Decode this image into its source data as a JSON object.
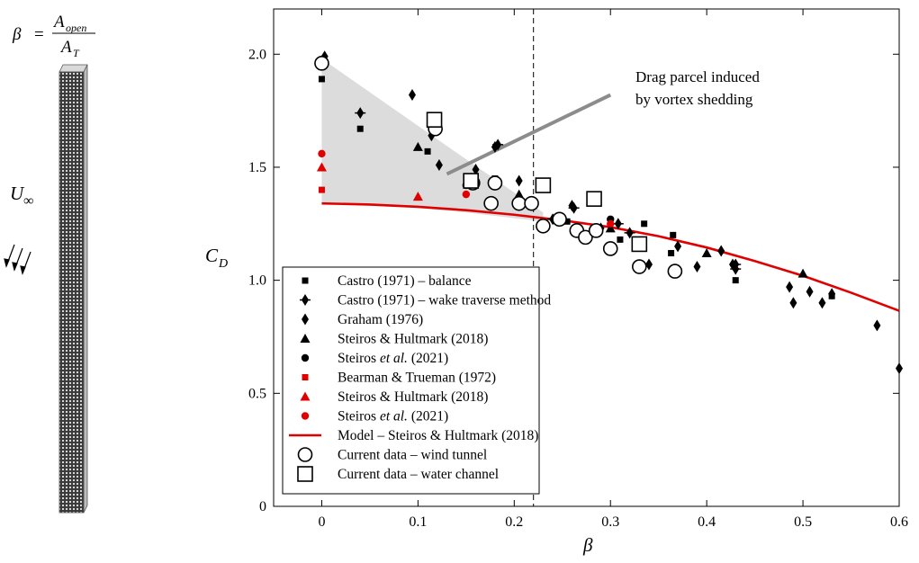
{
  "inset": {
    "beta_symbol": "β",
    "equals": "=",
    "numerator": "A",
    "numerator_sub": "open",
    "denominator": "A",
    "denominator_sub": "T",
    "flow_label": "U",
    "flow_label_sub": "∞"
  },
  "annotation": {
    "line1": "Drag parcel induced",
    "line2": "by vortex shedding"
  },
  "colors": {
    "black": "#000000",
    "red": "#e00000",
    "band": "#dcdcdc",
    "parcel_line": "#8c8c8c"
  },
  "chart_data": {
    "type": "scatter",
    "xlabel": "β",
    "ylabel": "C",
    "ylabel_sub": "D",
    "xlim": [
      -0.05,
      0.6
    ],
    "ylim": [
      0,
      2.2
    ],
    "xticks": [
      0,
      0.1,
      0.2,
      0.3,
      0.4,
      0.5,
      0.6
    ],
    "xtick_labels": [
      "0",
      "0.1",
      "0.2",
      "0.3",
      "0.4",
      "0.5",
      "0.6"
    ],
    "yticks": [
      0,
      0.5,
      1.0,
      1.5,
      2.0
    ],
    "ytick_labels": [
      "0",
      "0.5",
      "1.0",
      "1.5",
      "2.0"
    ],
    "grid": false,
    "legend_position": "bottom-left",
    "vertical_dashed_line_x": 0.22,
    "shaded_region": [
      [
        0,
        1.98
      ],
      [
        0.145,
        1.55
      ],
      [
        0.23,
        1.3
      ],
      [
        0.23,
        1.26
      ],
      [
        0.15,
        1.3
      ],
      [
        0.1,
        1.32
      ],
      [
        0,
        1.34
      ]
    ],
    "parcel_line": [
      [
        0.13,
        1.47
      ],
      [
        0.3,
        1.82
      ]
    ],
    "series": [
      {
        "name": "Castro (1971) – balance",
        "marker": "square",
        "size": "small",
        "color": "#000000",
        "points": [
          [
            0,
            1.89
          ],
          [
            0.04,
            1.67
          ],
          [
            0.11,
            1.57
          ],
          [
            0.18,
            1.45
          ],
          [
            0.255,
            1.26
          ],
          [
            0.285,
            1.21
          ],
          [
            0.31,
            1.18
          ],
          [
            0.335,
            1.25
          ],
          [
            0.363,
            1.12
          ],
          [
            0.365,
            1.2
          ],
          [
            0.43,
            1.0
          ],
          [
            0.53,
            0.93
          ]
        ]
      },
      {
        "name": "Castro (1971) – wake traverse method",
        "marker": "cross-diamond",
        "size": "normal",
        "color": "#000000",
        "points": [
          [
            0.0,
            1.97
          ],
          [
            0.04,
            1.74
          ],
          [
            0.117,
            1.69
          ],
          [
            0.183,
            1.6
          ],
          [
            0.155,
            1.45
          ],
          [
            0.24,
            1.27
          ],
          [
            0.262,
            1.32
          ],
          [
            0.308,
            1.25
          ],
          [
            0.32,
            1.21
          ],
          [
            0.43,
            1.07
          ],
          [
            0.43,
            1.05
          ]
        ]
      },
      {
        "name": "Graham (1976)",
        "marker": "diamond",
        "size": "normal",
        "color": "#000000",
        "points": [
          [
            0.003,
            1.99
          ],
          [
            0.094,
            1.82
          ],
          [
            0.114,
            1.64
          ],
          [
            0.122,
            1.51
          ],
          [
            0.18,
            1.59
          ],
          [
            0.16,
            1.49
          ],
          [
            0.205,
            1.44
          ],
          [
            0.26,
            1.33
          ],
          [
            0.29,
            1.23
          ],
          [
            0.37,
            1.15
          ],
          [
            0.39,
            1.06
          ],
          [
            0.415,
            1.13
          ],
          [
            0.427,
            1.07
          ],
          [
            0.486,
            0.97
          ],
          [
            0.49,
            0.9
          ],
          [
            0.507,
            0.95
          ],
          [
            0.52,
            0.9
          ],
          [
            0.53,
            0.94
          ],
          [
            0.577,
            0.8
          ],
          [
            0.6,
            0.61
          ],
          [
            0.34,
            1.07
          ]
        ]
      },
      {
        "name": "Steiros & Hultmark (2018)",
        "marker": "triangle",
        "size": "normal",
        "color": "#000000",
        "points": [
          [
            0.1,
            1.59
          ],
          [
            0.205,
            1.38
          ],
          [
            0.3,
            1.23
          ],
          [
            0.4,
            1.12
          ],
          [
            0.5,
            1.03
          ]
        ]
      },
      {
        "name": "Steiros et al. (2021)",
        "marker": "circle",
        "size": "small",
        "color": "#000000",
        "points": [
          [
            0.15,
            1.42
          ],
          [
            0.3,
            1.27
          ]
        ]
      },
      {
        "name": "Bearman & Trueman (1972)",
        "marker": "square",
        "size": "small",
        "color": "#e00000",
        "points": [
          [
            0,
            1.4
          ]
        ]
      },
      {
        "name": "Steiros & Hultmark (2018)",
        "marker": "triangle",
        "size": "normal",
        "color": "#e00000",
        "points": [
          [
            0,
            1.5
          ],
          [
            0.1,
            1.37
          ]
        ]
      },
      {
        "name": "Steiros et al. (2021)",
        "marker": "circle",
        "size": "small",
        "color": "#e00000",
        "points": [
          [
            0,
            1.56
          ],
          [
            0.15,
            1.38
          ],
          [
            0.3,
            1.25
          ]
        ]
      },
      {
        "name": "Model – Steiros & Hultmark (2018)",
        "marker": "line",
        "size": "normal",
        "color": "#e00000",
        "points": [
          [
            0,
            1.34
          ],
          [
            0.05,
            1.335
          ],
          [
            0.1,
            1.325
          ],
          [
            0.15,
            1.31
          ],
          [
            0.2,
            1.29
          ],
          [
            0.25,
            1.265
          ],
          [
            0.3,
            1.235
          ],
          [
            0.35,
            1.195
          ],
          [
            0.4,
            1.145
          ],
          [
            0.45,
            1.085
          ],
          [
            0.5,
            1.02
          ],
          [
            0.55,
            0.945
          ],
          [
            0.6,
            0.865
          ]
        ]
      },
      {
        "name": "Current data – wind tunnel",
        "marker": "open-circle",
        "size": "normal",
        "color": "#000000",
        "points": [
          [
            0,
            1.96
          ],
          [
            0.118,
            1.67
          ],
          [
            0.157,
            1.43
          ],
          [
            0.176,
            1.34
          ],
          [
            0.18,
            1.43
          ],
          [
            0.205,
            1.34
          ],
          [
            0.218,
            1.34
          ],
          [
            0.23,
            1.24
          ],
          [
            0.247,
            1.27
          ],
          [
            0.265,
            1.22
          ],
          [
            0.274,
            1.19
          ],
          [
            0.285,
            1.22
          ],
          [
            0.3,
            1.14
          ],
          [
            0.33,
            1.06
          ],
          [
            0.367,
            1.04
          ]
        ]
      },
      {
        "name": "Current data – water channel",
        "marker": "open-square",
        "size": "normal",
        "color": "#000000",
        "points": [
          [
            0.117,
            1.71
          ],
          [
            0.155,
            1.44
          ],
          [
            0.23,
            1.42
          ],
          [
            0.283,
            1.36
          ],
          [
            0.33,
            1.16
          ]
        ]
      }
    ]
  }
}
